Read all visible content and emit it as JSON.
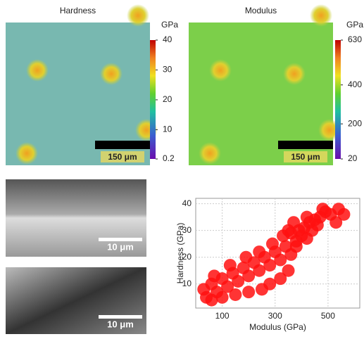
{
  "chart_data": [
    {
      "type": "heatmap",
      "title": "Hardness",
      "colorbar_label": "GPa",
      "clim": [
        0.2,
        40
      ],
      "cticks": [
        0.2,
        10,
        20,
        30,
        40
      ],
      "scale_bar": "150 μm"
    },
    {
      "type": "heatmap",
      "title": "Modulus",
      "colorbar_label": "GPa",
      "clim": [
        20,
        630
      ],
      "cticks": [
        20,
        200,
        400,
        630
      ],
      "scale_bar": "150 μm"
    },
    {
      "type": "image",
      "scale_bar": "10 μm"
    },
    {
      "type": "image",
      "scale_bar": "10 μm"
    },
    {
      "type": "scatter",
      "x_label": "Modulus (GPa)",
      "y_label": "Hardness (GPa)",
      "color": "#ff1010",
      "xlim": [
        0,
        620
      ],
      "ylim": [
        1,
        42
      ],
      "xticks": [
        100,
        300,
        500
      ],
      "yticks": [
        10,
        20,
        30,
        40
      ],
      "grid": true,
      "x": [
        30,
        40,
        60,
        80,
        100,
        120,
        140,
        160,
        180,
        200,
        220,
        240,
        260,
        280,
        300,
        320,
        340,
        350,
        360,
        380,
        320,
        280,
        250,
        200,
        150,
        100,
        60,
        70,
        130,
        190,
        240,
        290,
        330,
        360,
        390,
        410,
        430,
        450,
        470,
        490,
        400,
        420,
        440,
        460,
        380,
        350,
        370,
        420,
        480,
        510,
        530,
        540,
        560
      ],
      "y": [
        8,
        5,
        10,
        7,
        12,
        9,
        14,
        11,
        16,
        13,
        18,
        15,
        20,
        17,
        22,
        19,
        24,
        15,
        21,
        26,
        12,
        10,
        8,
        7,
        6,
        5,
        4,
        13,
        17,
        20,
        22,
        25,
        28,
        29,
        30,
        31,
        33,
        34,
        35,
        37,
        28,
        27,
        30,
        32,
        24,
        30,
        33,
        35,
        38,
        36,
        33,
        38,
        36
      ]
    }
  ]
}
